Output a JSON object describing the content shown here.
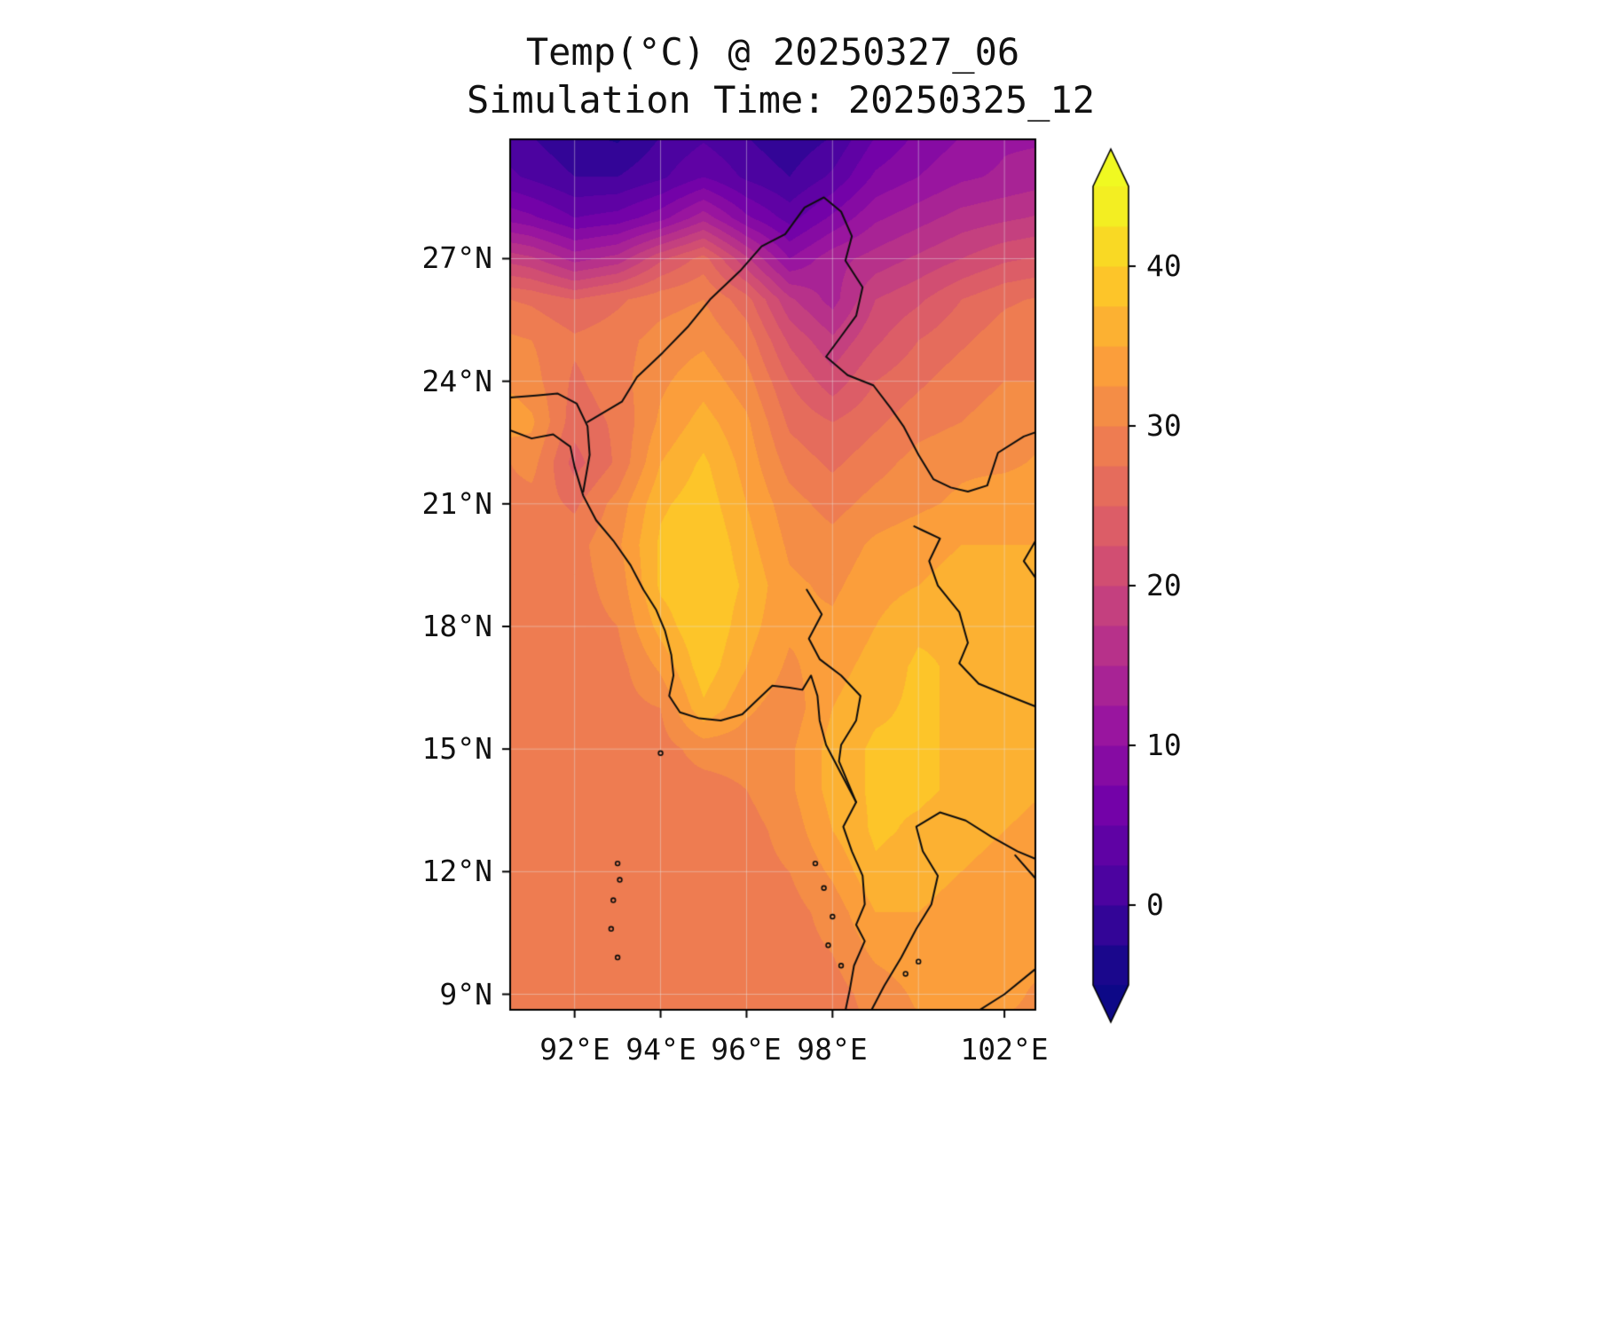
{
  "figure": {
    "background": "#ffffff"
  },
  "chart_data": {
    "type": "heatmap",
    "title": "Temp(°C) @ 20250327_06",
    "subtitle": "Simulation Time: 20250325_12",
    "variable": "Temperature",
    "units": "°C",
    "valid_time": "20250327_06",
    "simulation_time": "20250325_12",
    "lon_range": [
      90.5,
      102.72
    ],
    "lat_range": [
      8.62,
      29.92
    ],
    "xticks": [
      {
        "lon": 92,
        "label": "92°E"
      },
      {
        "lon": 94,
        "label": "94°E"
      },
      {
        "lon": 96,
        "label": "96°E"
      },
      {
        "lon": 98,
        "label": "98°E"
      },
      {
        "lon": 102,
        "label": "102°E"
      }
    ],
    "grid_lons": [
      92,
      94,
      96,
      98,
      100,
      102
    ],
    "yticks": [
      {
        "lat": 27,
        "label": "27°N"
      },
      {
        "lat": 24,
        "label": "24°N"
      },
      {
        "lat": 21,
        "label": "21°N"
      },
      {
        "lat": 18,
        "label": "18°N"
      },
      {
        "lat": 15,
        "label": "15°N"
      },
      {
        "lat": 12,
        "label": "12°N"
      },
      {
        "lat": 9,
        "label": "9°N"
      }
    ],
    "colorbar": {
      "min": -5,
      "max": 45,
      "step": 2.5,
      "colormap": "plasma",
      "colormap_stops": [
        "#0d0887",
        "#46039f",
        "#7201a8",
        "#9c179e",
        "#bd3786",
        "#d8576b",
        "#ed7953",
        "#fb9f3a",
        "#fdca26",
        "#f0f921"
      ],
      "under_color": "#0d0887",
      "over_color": "#f0f921",
      "ticks": [
        {
          "value": 40,
          "label": "40"
        },
        {
          "value": 30,
          "label": "30"
        },
        {
          "value": 20,
          "label": "20"
        },
        {
          "value": 10,
          "label": "10"
        },
        {
          "value": 0,
          "label": "0"
        }
      ]
    },
    "grid": {
      "lons": [
        90,
        91,
        92,
        93,
        94,
        95,
        96,
        97,
        98,
        99,
        100,
        101,
        102,
        103
      ],
      "lats": [
        30,
        29,
        28,
        27,
        26,
        25,
        24,
        23,
        22,
        21,
        20,
        19,
        18,
        17,
        16,
        15,
        14,
        13,
        12,
        11,
        10,
        9,
        8
      ],
      "values": [
        [
          2,
          0,
          -2,
          -3,
          0,
          2,
          0,
          -2,
          0,
          5,
          8,
          10,
          12,
          12
        ],
        [
          4,
          2,
          0,
          0,
          2,
          5,
          2,
          0,
          3,
          8,
          10,
          12,
          13,
          14
        ],
        [
          10,
          8,
          5,
          6,
          9,
          14,
          8,
          4,
          8,
          12,
          14,
          16,
          17,
          18
        ],
        [
          20,
          18,
          14,
          16,
          22,
          26,
          18,
          10,
          14,
          16,
          18,
          20,
          22,
          23
        ],
        [
          28,
          27,
          25,
          27,
          29,
          30,
          26,
          18,
          14,
          20,
          22,
          25,
          27,
          28
        ],
        [
          31,
          30,
          28,
          29,
          31,
          32,
          29,
          22,
          18,
          22,
          25,
          27,
          29,
          30
        ],
        [
          33,
          31,
          27,
          29,
          32,
          34,
          31,
          25,
          21,
          25,
          27,
          29,
          30,
          30
        ],
        [
          35,
          33,
          26,
          28,
          33,
          36,
          33,
          27,
          25,
          27,
          29,
          30,
          31,
          32
        ],
        [
          29,
          31,
          24,
          28,
          35,
          38,
          34,
          29,
          27,
          29,
          31,
          32,
          32,
          33
        ],
        [
          29,
          29,
          27,
          31,
          37,
          39,
          35,
          31,
          29,
          31,
          32,
          33,
          34,
          34
        ],
        [
          29,
          29,
          29,
          32,
          38,
          40,
          36,
          32,
          31,
          33,
          34,
          35,
          35,
          35
        ],
        [
          29,
          29,
          29,
          31,
          38,
          40,
          37,
          33,
          32,
          34,
          35,
          36,
          36,
          36
        ],
        [
          29,
          29,
          29,
          30,
          36,
          40,
          36,
          33,
          33,
          35,
          37,
          37,
          36,
          36
        ],
        [
          29,
          29,
          29,
          29,
          33,
          39,
          35,
          32,
          34,
          36,
          38,
          37,
          36,
          36
        ],
        [
          29,
          29,
          29,
          29,
          30,
          37,
          33,
          31,
          35,
          37,
          38,
          37,
          36,
          35
        ],
        [
          29,
          29,
          29,
          29,
          29,
          31,
          31,
          32,
          36,
          38,
          38,
          37,
          36,
          35
        ],
        [
          29,
          29,
          29,
          29,
          29,
          29,
          30,
          32,
          36,
          38,
          38,
          37,
          36,
          35
        ],
        [
          29,
          29,
          29,
          29,
          29,
          29,
          29,
          31,
          35,
          38,
          37,
          36,
          35,
          34
        ],
        [
          29,
          29,
          29,
          29,
          29,
          29,
          29,
          30,
          33,
          37,
          36,
          35,
          34,
          34
        ],
        [
          29,
          29,
          29,
          29,
          29,
          29,
          29,
          29,
          31,
          35,
          35,
          34,
          34,
          33
        ],
        [
          29,
          29,
          29,
          29,
          29,
          29,
          29,
          29,
          30,
          33,
          34,
          33,
          33,
          33
        ],
        [
          29,
          29,
          29,
          29,
          29,
          29,
          29,
          29,
          29,
          31,
          33,
          33,
          33,
          32
        ],
        [
          29,
          29,
          29,
          29,
          29,
          29,
          29,
          29,
          29,
          30,
          32,
          32,
          32,
          32
        ]
      ]
    },
    "coastlines": [
      [
        [
          90.5,
          22.8
        ],
        [
          91.0,
          22.6
        ],
        [
          91.5,
          22.7
        ],
        [
          91.9,
          22.4
        ],
        [
          92.0,
          21.9
        ],
        [
          92.2,
          21.2
        ],
        [
          92.5,
          20.6
        ],
        [
          92.9,
          20.1
        ],
        [
          93.3,
          19.5
        ],
        [
          93.6,
          18.9
        ],
        [
          93.9,
          18.4
        ],
        [
          94.1,
          17.9
        ],
        [
          94.25,
          17.3
        ],
        [
          94.3,
          16.8
        ],
        [
          94.2,
          16.3
        ],
        [
          94.45,
          15.9
        ],
        [
          94.9,
          15.75
        ],
        [
          95.4,
          15.7
        ],
        [
          95.9,
          15.85
        ],
        [
          96.3,
          16.25
        ],
        [
          96.6,
          16.55
        ],
        [
          97.0,
          16.5
        ],
        [
          97.3,
          16.45
        ],
        [
          97.5,
          16.8
        ],
        [
          97.65,
          16.3
        ],
        [
          97.7,
          15.7
        ],
        [
          97.85,
          15.1
        ],
        [
          98.15,
          14.5
        ],
        [
          98.55,
          13.7
        ],
        [
          98.25,
          13.1
        ],
        [
          98.45,
          12.5
        ],
        [
          98.7,
          11.9
        ],
        [
          98.75,
          11.2
        ],
        [
          98.55,
          10.7
        ],
        [
          98.75,
          10.3
        ],
        [
          98.5,
          9.7
        ],
        [
          98.4,
          9.1
        ],
        [
          98.3,
          8.6
        ]
      ],
      [
        [
          98.9,
          8.6
        ],
        [
          99.2,
          9.2
        ],
        [
          99.6,
          9.9
        ],
        [
          99.95,
          10.6
        ],
        [
          100.3,
          11.2
        ],
        [
          100.45,
          11.9
        ],
        [
          100.1,
          12.5
        ],
        [
          99.95,
          13.1
        ],
        [
          100.5,
          13.45
        ],
        [
          101.1,
          13.25
        ],
        [
          101.7,
          12.85
        ],
        [
          102.3,
          12.5
        ],
        [
          102.75,
          12.3
        ],
        [
          103.0,
          12.3
        ]
      ],
      [
        [
          101.4,
          8.6
        ],
        [
          102.0,
          9.0
        ],
        [
          102.7,
          9.6
        ],
        [
          103.0,
          9.9
        ]
      ]
    ],
    "borders": [
      [
        [
          90.5,
          23.6
        ],
        [
          91.1,
          23.65
        ],
        [
          91.6,
          23.7
        ],
        [
          92.05,
          23.45
        ],
        [
          92.3,
          22.9
        ],
        [
          92.35,
          22.2
        ],
        [
          92.2,
          21.3
        ]
      ],
      [
        [
          92.3,
          23.0
        ],
        [
          93.1,
          23.5
        ],
        [
          93.45,
          24.1
        ],
        [
          94.05,
          24.7
        ],
        [
          94.65,
          25.35
        ],
        [
          95.15,
          26.0
        ],
        [
          95.85,
          26.7
        ],
        [
          96.35,
          27.3
        ],
        [
          96.9,
          27.6
        ],
        [
          97.35,
          28.25
        ],
        [
          97.8,
          28.5
        ],
        [
          98.2,
          28.15
        ],
        [
          98.45,
          27.55
        ],
        [
          98.3,
          26.95
        ],
        [
          98.7,
          26.3
        ],
        [
          98.55,
          25.6
        ],
        [
          98.2,
          25.1
        ],
        [
          97.85,
          24.6
        ],
        [
          98.35,
          24.15
        ],
        [
          98.95,
          23.9
        ],
        [
          99.35,
          23.35
        ],
        [
          99.65,
          22.9
        ],
        [
          100.0,
          22.2
        ],
        [
          100.35,
          21.6
        ],
        [
          100.75,
          21.4
        ],
        [
          101.15,
          21.3
        ],
        [
          101.6,
          21.45
        ],
        [
          101.85,
          22.25
        ],
        [
          102.45,
          22.65
        ],
        [
          103.0,
          22.85
        ]
      ],
      [
        [
          97.4,
          18.9
        ],
        [
          97.75,
          18.3
        ],
        [
          97.45,
          17.7
        ],
        [
          97.7,
          17.2
        ],
        [
          98.2,
          16.8
        ],
        [
          98.65,
          16.3
        ],
        [
          98.55,
          15.7
        ],
        [
          98.2,
          15.1
        ],
        [
          98.15,
          14.7
        ],
        [
          98.55,
          13.7
        ]
      ],
      [
        [
          99.9,
          20.45
        ],
        [
          100.1,
          20.35
        ],
        [
          100.5,
          20.15
        ],
        [
          100.25,
          19.6
        ],
        [
          100.45,
          19.0
        ],
        [
          100.95,
          18.35
        ],
        [
          101.15,
          17.6
        ],
        [
          100.95,
          17.1
        ],
        [
          101.4,
          16.6
        ],
        [
          102.1,
          16.3
        ],
        [
          102.7,
          16.05
        ],
        [
          103.0,
          15.9
        ]
      ],
      [
        [
          103.0,
          20.6
        ],
        [
          102.45,
          19.6
        ],
        [
          102.85,
          19.0
        ],
        [
          103.0,
          18.6
        ]
      ],
      [
        [
          102.25,
          12.4
        ],
        [
          102.75,
          11.8
        ],
        [
          103.0,
          11.4
        ]
      ]
    ],
    "islands": [
      [
        93.0,
        12.2
      ],
      [
        93.05,
        11.8
      ],
      [
        92.9,
        11.3
      ],
      [
        92.85,
        10.6
      ],
      [
        93.0,
        9.9
      ],
      [
        94.0,
        14.9
      ],
      [
        97.6,
        12.2
      ],
      [
        97.8,
        11.6
      ],
      [
        98.0,
        10.9
      ],
      [
        97.9,
        10.2
      ],
      [
        98.2,
        9.7
      ],
      [
        99.7,
        9.5
      ],
      [
        100.0,
        9.8
      ]
    ]
  }
}
